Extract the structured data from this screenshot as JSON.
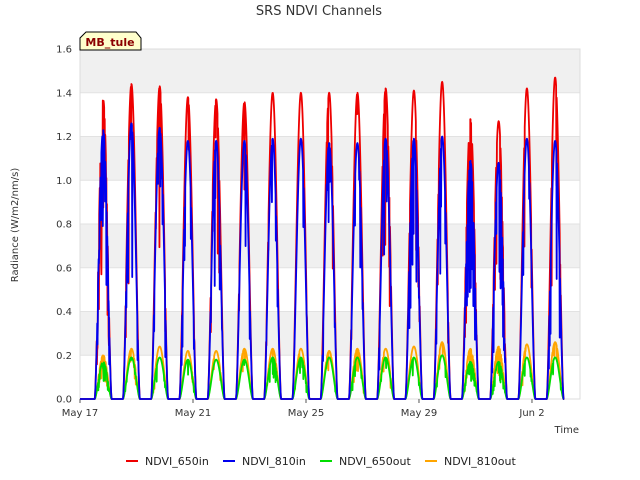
{
  "chart_data": {
    "type": "line",
    "title": "SRS NDVI Channels",
    "xlabel": "Time",
    "ylabel": "Radiance (W/m2/nm/s)",
    "badge": "MB_tule",
    "ylim": [
      0.0,
      1.6
    ],
    "yticks": [
      "0.0",
      "0.2",
      "0.4",
      "0.6",
      "0.8",
      "1.0",
      "1.2",
      "1.4",
      "1.6"
    ],
    "ytick_values": [
      0.0,
      0.2,
      0.4,
      0.6,
      0.8,
      1.0,
      1.2,
      1.4,
      1.6
    ],
    "xlim_days": [
      0,
      17.7
    ],
    "xticks": [
      "May 17",
      "May 21",
      "May 25",
      "May 29",
      "Jun 2"
    ],
    "xtick_days": [
      0,
      4,
      8,
      12,
      16
    ],
    "x_note": "days since May 17 00:00; one daily peak near midday",
    "day_noon": [
      0.82,
      1.82,
      2.82,
      3.82,
      4.82,
      5.82,
      6.82,
      7.82,
      8.82,
      9.82,
      10.82,
      11.82,
      12.82,
      13.82,
      14.82,
      15.82,
      16.82
    ],
    "series": [
      {
        "name": "NDVI_650in",
        "color": "#ee0000",
        "daily_peaks": [
          1.37,
          1.44,
          1.43,
          1.38,
          1.37,
          1.36,
          1.4,
          1.4,
          1.4,
          1.4,
          1.42,
          1.41,
          1.45,
          1.28,
          1.27,
          1.42,
          1.47
        ]
      },
      {
        "name": "NDVI_810in",
        "color": "#0000ee",
        "daily_peaks": [
          1.23,
          1.26,
          1.24,
          1.18,
          1.18,
          1.18,
          1.19,
          1.19,
          1.17,
          1.17,
          1.19,
          1.19,
          1.2,
          1.09,
          1.08,
          1.19,
          1.18
        ]
      },
      {
        "name": "NDVI_650out",
        "color": "#00dd00",
        "daily_peaks": [
          0.17,
          0.19,
          0.19,
          0.18,
          0.18,
          0.18,
          0.19,
          0.19,
          0.19,
          0.19,
          0.19,
          0.19,
          0.2,
          0.17,
          0.17,
          0.19,
          0.19
        ]
      },
      {
        "name": "NDVI_810out",
        "color": "#ffa500",
        "daily_peaks": [
          0.2,
          0.23,
          0.24,
          0.22,
          0.22,
          0.23,
          0.23,
          0.23,
          0.22,
          0.23,
          0.23,
          0.24,
          0.26,
          0.23,
          0.24,
          0.25,
          0.26
        ]
      }
    ],
    "legend_position": "bottom-center",
    "grid": "horizontal bands"
  }
}
